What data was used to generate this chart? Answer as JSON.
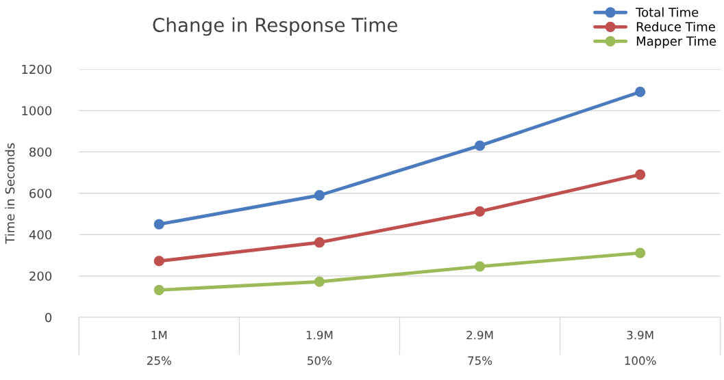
{
  "chart_data": {
    "type": "line",
    "title": "Change in Response Time",
    "ylabel": "Time in Seconds",
    "categories": [
      "1M\n\n25%",
      "1.9M\n\n50%",
      "2.9M\n\n75%",
      "3.9M\n\n100%"
    ],
    "series": [
      {
        "name": "Total Time",
        "color": "#4a7bbf",
        "values": [
          450,
          590,
          830,
          1090
        ]
      },
      {
        "name": "Reduce Time",
        "color": "#c0504d",
        "values": [
          272,
          362,
          512,
          690
        ]
      },
      {
        "name": "Mapper Time",
        "color": "#9bbb59",
        "values": [
          132,
          172,
          246,
          311
        ]
      }
    ],
    "ylim": [
      0,
      1200
    ],
    "yticks": [
      0,
      200,
      400,
      600,
      800,
      1000,
      1200
    ],
    "grid": "y",
    "legend": "top right",
    "marker": "circle",
    "line_style": "solid"
  }
}
